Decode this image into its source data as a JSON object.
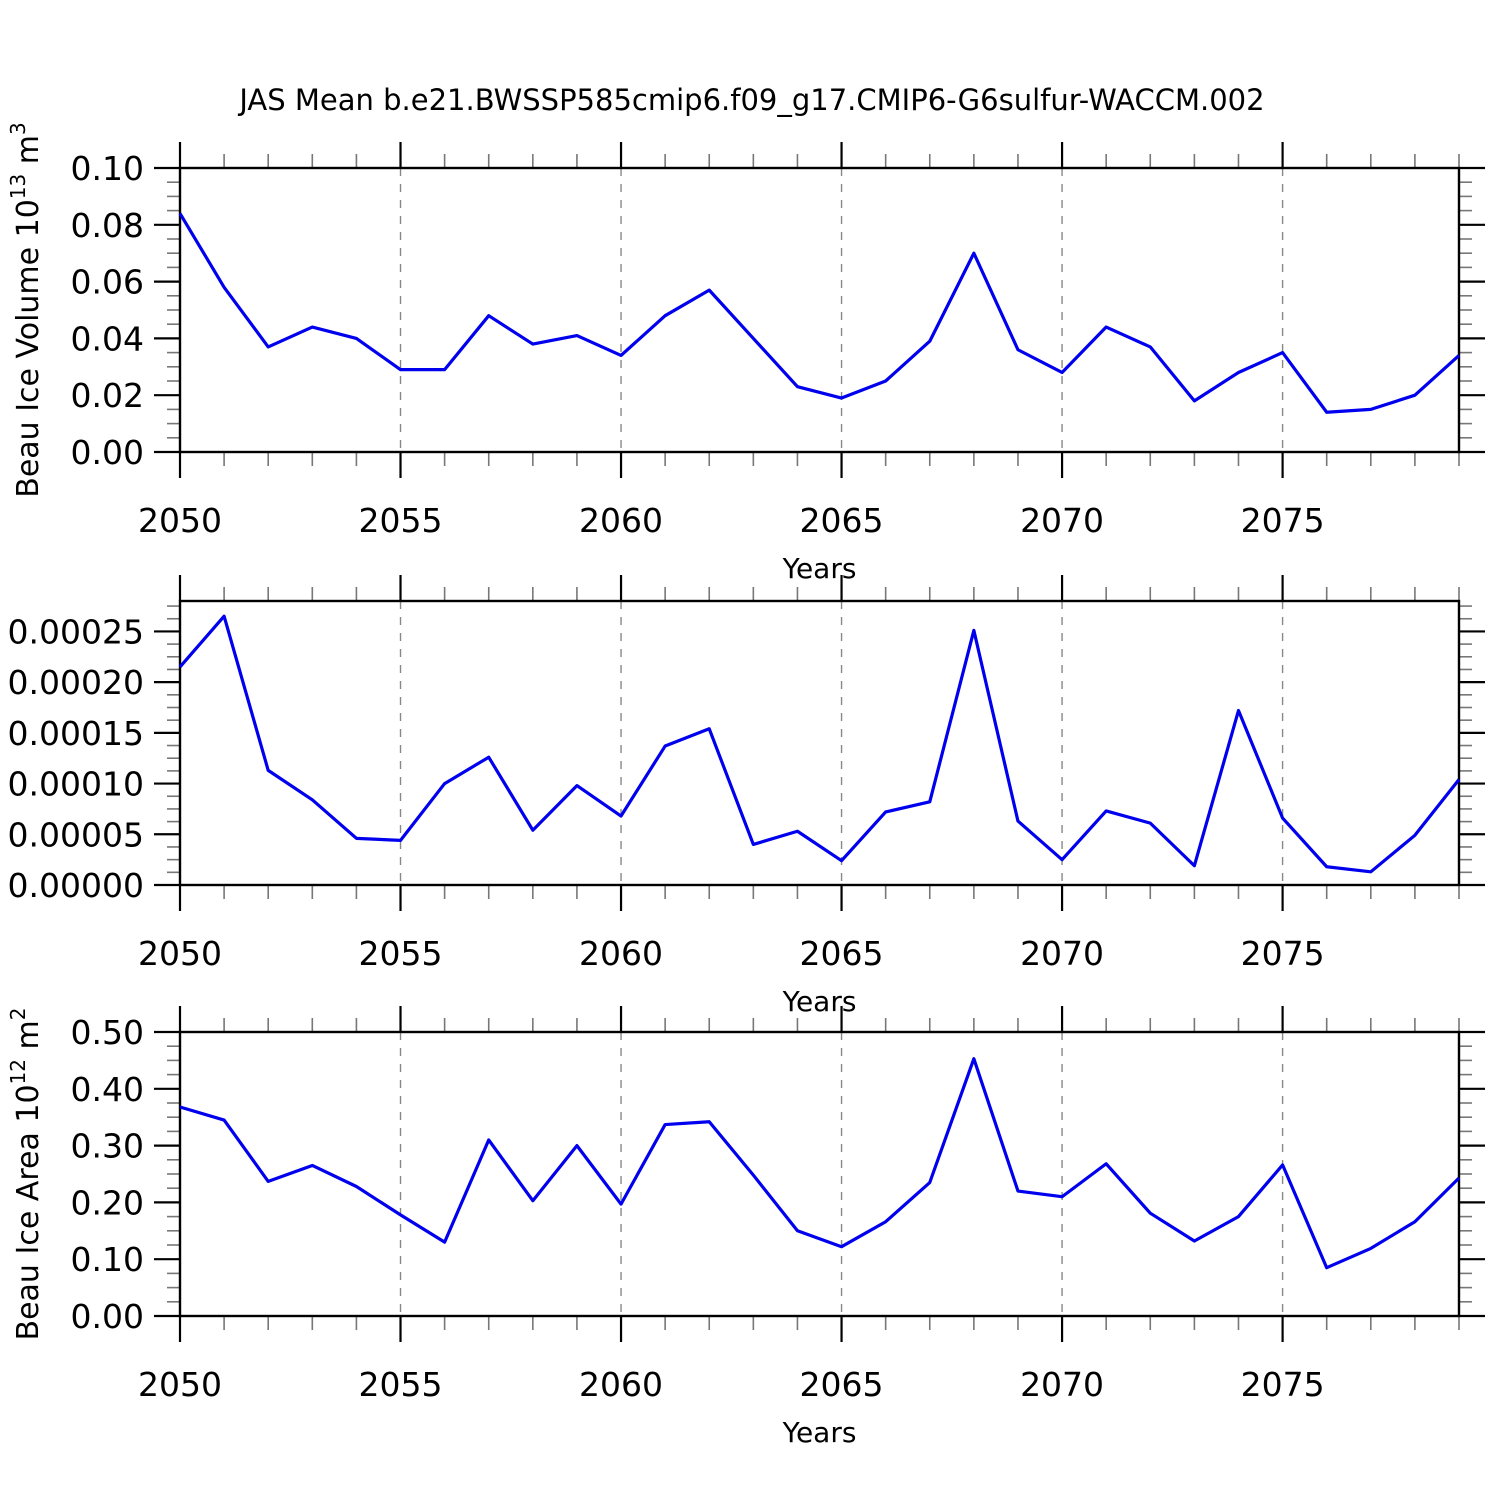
{
  "title": "JAS Mean b.e21.BWSSP585cmip6.f09_g17.CMIP6-G6sulfur-WACCM.002",
  "line_color": "#0000ee",
  "grid_color": "#888888",
  "axis_color": "#000000",
  "minor_tick_color": "#777777",
  "chart_data": [
    {
      "type": "line",
      "panel": "ice-volume",
      "ylabel_parts": [
        {
          "t": "Beau Ice Volume 10"
        },
        {
          "t": "13",
          "sup": true
        },
        {
          "t": " m"
        },
        {
          "t": "3",
          "sup": true
        }
      ],
      "xlabel": "Years",
      "xlim": [
        2050,
        2079
      ],
      "xticks": [
        2050,
        2055,
        2060,
        2065,
        2070,
        2075
      ],
      "xticklabels": [
        "2050",
        "2055",
        "2060",
        "2065",
        "2070",
        "2075"
      ],
      "grid_x": [
        2055,
        2060,
        2065,
        2070,
        2075
      ],
      "ylim": [
        0,
        0.1
      ],
      "yticks": [
        0,
        0.02,
        0.04,
        0.06,
        0.08,
        0.1
      ],
      "yticklabels": [
        "0.00",
        "0.02",
        "0.04",
        "0.06",
        "0.08",
        "0.10"
      ],
      "minor_y_step": 0.005,
      "x": [
        2050,
        2051,
        2052,
        2053,
        2054,
        2055,
        2056,
        2057,
        2058,
        2059,
        2060,
        2061,
        2062,
        2063,
        2064,
        2065,
        2066,
        2067,
        2068,
        2069,
        2070,
        2071,
        2072,
        2073,
        2074,
        2075,
        2076,
        2077,
        2078,
        2079
      ],
      "values": [
        0.084,
        0.058,
        0.037,
        0.044,
        0.04,
        0.029,
        0.029,
        0.048,
        0.038,
        0.041,
        0.034,
        0.048,
        0.057,
        0.04,
        0.023,
        0.019,
        0.025,
        0.039,
        0.07,
        0.036,
        0.028,
        0.044,
        0.037,
        0.018,
        0.028,
        0.035,
        0.014,
        0.015,
        0.02,
        0.034
      ]
    },
    {
      "type": "line",
      "panel": "ice-ratio",
      "ylabel_parts": [],
      "xlabel": "Years",
      "xlim": [
        2050,
        2079
      ],
      "xticks": [
        2050,
        2055,
        2060,
        2065,
        2070,
        2075
      ],
      "xticklabels": [
        "2050",
        "2055",
        "2060",
        "2065",
        "2070",
        "2075"
      ],
      "grid_x": [
        2055,
        2060,
        2065,
        2070,
        2075
      ],
      "ylim": [
        0,
        0.00028
      ],
      "yticks": [
        0,
        5e-05,
        0.0001,
        0.00015,
        0.0002,
        0.00025
      ],
      "yticklabels": [
        "0.00000",
        "0.00005",
        "0.00010",
        "0.00015",
        "0.00020",
        "0.00025"
      ],
      "minor_y_step": 1.25e-05,
      "x": [
        2050,
        2051,
        2052,
        2053,
        2054,
        2055,
        2056,
        2057,
        2058,
        2059,
        2060,
        2061,
        2062,
        2063,
        2064,
        2065,
        2066,
        2067,
        2068,
        2069,
        2070,
        2071,
        2072,
        2073,
        2074,
        2075,
        2076,
        2077,
        2078,
        2079
      ],
      "values": [
        0.000215,
        0.000265,
        0.000113,
        8.4e-05,
        4.6e-05,
        4.4e-05,
        0.0001,
        0.000126,
        5.4e-05,
        9.8e-05,
        6.8e-05,
        0.000137,
        0.000154,
        4e-05,
        5.3e-05,
        2.4e-05,
        7.2e-05,
        8.2e-05,
        0.000251,
        6.3e-05,
        2.5e-05,
        7.3e-05,
        6.1e-05,
        1.9e-05,
        0.000172,
        6.6e-05,
        1.8e-05,
        1.3e-05,
        4.9e-05,
        0.000104
      ]
    },
    {
      "type": "line",
      "panel": "ice-area",
      "ylabel_parts": [
        {
          "t": "Beau Ice Area 10"
        },
        {
          "t": "12",
          "sup": true
        },
        {
          "t": " m"
        },
        {
          "t": "2",
          "sup": true
        }
      ],
      "xlabel": "Years",
      "xlim": [
        2050,
        2079
      ],
      "xticks": [
        2050,
        2055,
        2060,
        2065,
        2070,
        2075
      ],
      "xticklabels": [
        "2050",
        "2055",
        "2060",
        "2065",
        "2070",
        "2075"
      ],
      "grid_x": [
        2055,
        2060,
        2065,
        2070,
        2075
      ],
      "ylim": [
        0,
        0.5
      ],
      "yticks": [
        0,
        0.1,
        0.2,
        0.3,
        0.4,
        0.5
      ],
      "yticklabels": [
        "0.00",
        "0.10",
        "0.20",
        "0.30",
        "0.40",
        "0.50"
      ],
      "minor_y_step": 0.025,
      "x": [
        2050,
        2051,
        2052,
        2053,
        2054,
        2055,
        2056,
        2057,
        2058,
        2059,
        2060,
        2061,
        2062,
        2063,
        2064,
        2065,
        2066,
        2067,
        2068,
        2069,
        2070,
        2071,
        2072,
        2073,
        2074,
        2075,
        2076,
        2077,
        2078,
        2079
      ],
      "values": [
        0.368,
        0.345,
        0.237,
        0.265,
        0.228,
        0.178,
        0.13,
        0.31,
        0.203,
        0.3,
        0.197,
        0.337,
        0.342,
        0.248,
        0.15,
        0.122,
        0.166,
        0.235,
        0.453,
        0.22,
        0.21,
        0.268,
        0.181,
        0.132,
        0.175,
        0.266,
        0.085,
        0.119,
        0.166,
        0.243
      ]
    }
  ]
}
